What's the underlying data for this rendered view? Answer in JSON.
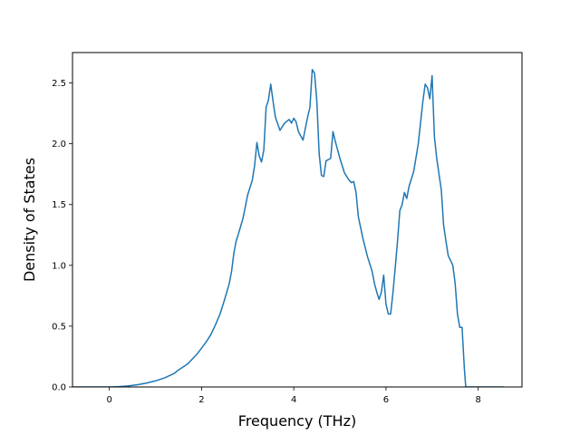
{
  "chart_data": {
    "type": "line",
    "title": "",
    "xlabel": "Frequency (THz)",
    "ylabel": "Density of States",
    "xlim": [
      -0.8,
      8.95
    ],
    "ylim": [
      0.0,
      2.75
    ],
    "xticks": [
      0,
      2,
      4,
      6,
      8
    ],
    "xtick_labels": [
      "0",
      "2",
      "4",
      "6",
      "8"
    ],
    "yticks": [
      0.0,
      0.5,
      1.0,
      1.5,
      2.0,
      2.5
    ],
    "ytick_labels": [
      "0.0",
      "0.5",
      "1.0",
      "1.5",
      "2.0",
      "2.5"
    ],
    "grid": false,
    "legend": "none",
    "series": [
      {
        "color": "#1f77b4",
        "points": [
          [
            -0.8,
            0.0
          ],
          [
            0.0,
            0.0
          ],
          [
            0.2,
            0.003
          ],
          [
            0.4,
            0.008
          ],
          [
            0.6,
            0.018
          ],
          [
            0.8,
            0.032
          ],
          [
            1.0,
            0.05
          ],
          [
            1.2,
            0.075
          ],
          [
            1.4,
            0.11
          ],
          [
            1.5,
            0.14
          ],
          [
            1.6,
            0.165
          ],
          [
            1.7,
            0.19
          ],
          [
            1.8,
            0.23
          ],
          [
            1.9,
            0.27
          ],
          [
            2.0,
            0.32
          ],
          [
            2.1,
            0.37
          ],
          [
            2.2,
            0.43
          ],
          [
            2.3,
            0.51
          ],
          [
            2.4,
            0.6
          ],
          [
            2.5,
            0.72
          ],
          [
            2.6,
            0.85
          ],
          [
            2.65,
            0.95
          ],
          [
            2.7,
            1.1
          ],
          [
            2.75,
            1.2
          ],
          [
            2.8,
            1.26
          ],
          [
            2.9,
            1.39
          ],
          [
            3.0,
            1.58
          ],
          [
            3.1,
            1.7
          ],
          [
            3.15,
            1.82
          ],
          [
            3.2,
            2.01
          ],
          [
            3.25,
            1.9
          ],
          [
            3.3,
            1.85
          ],
          [
            3.35,
            1.95
          ],
          [
            3.4,
            2.3
          ],
          [
            3.45,
            2.36
          ],
          [
            3.5,
            2.49
          ],
          [
            3.55,
            2.35
          ],
          [
            3.6,
            2.22
          ],
          [
            3.7,
            2.11
          ],
          [
            3.8,
            2.17
          ],
          [
            3.9,
            2.2
          ],
          [
            3.95,
            2.17
          ],
          [
            4.0,
            2.21
          ],
          [
            4.05,
            2.18
          ],
          [
            4.1,
            2.1
          ],
          [
            4.2,
            2.03
          ],
          [
            4.3,
            2.22
          ],
          [
            4.35,
            2.3
          ],
          [
            4.4,
            2.61
          ],
          [
            4.45,
            2.58
          ],
          [
            4.5,
            2.35
          ],
          [
            4.55,
            1.92
          ],
          [
            4.6,
            1.74
          ],
          [
            4.65,
            1.73
          ],
          [
            4.7,
            1.86
          ],
          [
            4.8,
            1.88
          ],
          [
            4.85,
            2.1
          ],
          [
            4.9,
            2.02
          ],
          [
            5.0,
            1.88
          ],
          [
            5.1,
            1.76
          ],
          [
            5.2,
            1.7
          ],
          [
            5.25,
            1.68
          ],
          [
            5.3,
            1.69
          ],
          [
            5.35,
            1.6
          ],
          [
            5.4,
            1.4
          ],
          [
            5.5,
            1.22
          ],
          [
            5.6,
            1.07
          ],
          [
            5.7,
            0.95
          ],
          [
            5.75,
            0.85
          ],
          [
            5.8,
            0.78
          ],
          [
            5.85,
            0.72
          ],
          [
            5.9,
            0.78
          ],
          [
            5.95,
            0.92
          ],
          [
            6.0,
            0.68
          ],
          [
            6.05,
            0.6
          ],
          [
            6.1,
            0.6
          ],
          [
            6.15,
            0.77
          ],
          [
            6.2,
            0.98
          ],
          [
            6.25,
            1.2
          ],
          [
            6.3,
            1.45
          ],
          [
            6.35,
            1.5
          ],
          [
            6.4,
            1.6
          ],
          [
            6.45,
            1.55
          ],
          [
            6.5,
            1.65
          ],
          [
            6.6,
            1.77
          ],
          [
            6.7,
            2.0
          ],
          [
            6.8,
            2.35
          ],
          [
            6.85,
            2.49
          ],
          [
            6.9,
            2.46
          ],
          [
            6.95,
            2.37
          ],
          [
            7.0,
            2.56
          ],
          [
            7.05,
            2.06
          ],
          [
            7.1,
            1.88
          ],
          [
            7.2,
            1.62
          ],
          [
            7.25,
            1.33
          ],
          [
            7.3,
            1.2
          ],
          [
            7.35,
            1.08
          ],
          [
            7.4,
            1.04
          ],
          [
            7.45,
            1.0
          ],
          [
            7.5,
            0.85
          ],
          [
            7.55,
            0.6
          ],
          [
            7.6,
            0.49
          ],
          [
            7.65,
            0.49
          ],
          [
            7.7,
            0.15
          ],
          [
            7.73,
            0.0
          ],
          [
            8.55,
            0.0
          ]
        ]
      }
    ]
  }
}
